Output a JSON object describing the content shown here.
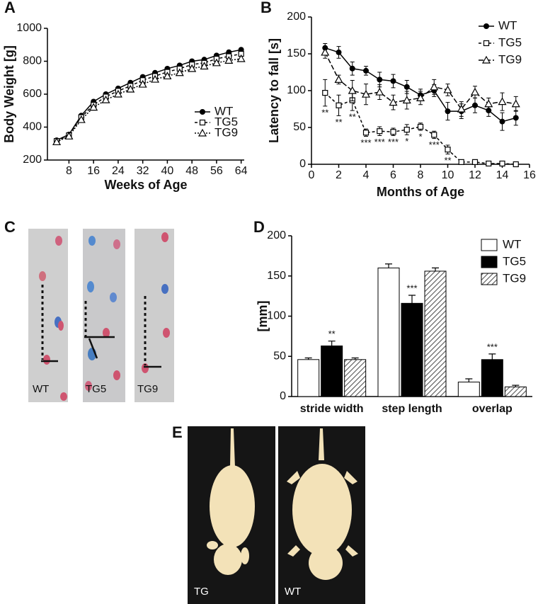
{
  "chart_data": [
    {
      "panel": "A",
      "type": "line",
      "x_label": "Weeks of Age",
      "y_label": "Body Weight [g]",
      "x": [
        4,
        8,
        12,
        16,
        20,
        24,
        28,
        32,
        36,
        40,
        44,
        48,
        52,
        56,
        60,
        64
      ],
      "xlim": [
        1,
        65
      ],
      "xticks": [
        8,
        16,
        24,
        32,
        40,
        48,
        56,
        64
      ],
      "ylim": [
        200,
        1000
      ],
      "yticks": [
        200,
        400,
        600,
        800,
        1000
      ],
      "legend": "lower right",
      "series": [
        {
          "name": "WT",
          "color": "#000000",
          "marker": "circle",
          "line_style": "solid",
          "values": [
            320,
            355,
            470,
            555,
            600,
            635,
            670,
            705,
            730,
            755,
            775,
            800,
            810,
            835,
            855,
            870
          ]
        },
        {
          "name": "TG5",
          "color": "#000000",
          "marker": "square",
          "line_style": "dashed",
          "values": [
            315,
            350,
            460,
            535,
            585,
            620,
            650,
            685,
            710,
            735,
            755,
            780,
            790,
            815,
            830,
            845
          ]
        },
        {
          "name": "TG9",
          "color": "#000000",
          "marker": "triangle",
          "line_style": "dotted",
          "values": [
            310,
            345,
            445,
            520,
            565,
            600,
            630,
            660,
            690,
            710,
            730,
            755,
            770,
            790,
            805,
            815
          ]
        }
      ]
    },
    {
      "panel": "B",
      "type": "line",
      "x_label": "Months of Age",
      "y_label": "Latency to fall [s]",
      "x": [
        1,
        2,
        3,
        4,
        5,
        6,
        7,
        8,
        9,
        10,
        11,
        12,
        13,
        14,
        15
      ],
      "xlim": [
        0,
        16
      ],
      "xticks": [
        0,
        2,
        4,
        6,
        8,
        10,
        12,
        14,
        16
      ],
      "ylim": [
        0,
        200
      ],
      "yticks": [
        0,
        50,
        100,
        150,
        200
      ],
      "legend": "upper right",
      "series": [
        {
          "name": "WT",
          "color": "#000000",
          "marker": "circle",
          "line_style": "solid",
          "values": [
            158,
            152,
            130,
            127,
            115,
            113,
            105,
            94,
            100,
            72,
            72,
            80,
            73,
            58,
            63
          ],
          "errors": [
            6,
            8,
            9,
            6,
            10,
            9,
            9,
            8,
            8,
            12,
            10,
            10,
            8,
            12,
            10
          ]
        },
        {
          "name": "TG5",
          "color": "#000000",
          "marker": "square",
          "line_style": "dashed",
          "values": [
            97,
            80,
            87,
            43,
            45,
            44,
            47,
            51,
            40,
            20,
            3,
            3,
            1,
            1,
            0
          ],
          "errors": [
            18,
            14,
            14,
            5,
            6,
            5,
            7,
            5,
            5,
            6,
            2,
            2,
            1,
            1,
            1
          ],
          "annotations": [
            "**",
            "**",
            "**",
            "***",
            "***",
            "***",
            "*",
            "*",
            "***",
            "**",
            null,
            null,
            null,
            null,
            null
          ]
        },
        {
          "name": "TG9",
          "color": "#000000",
          "marker": "triangle",
          "line_style": "longdash",
          "values": [
            152,
            115,
            100,
            95,
            98,
            84,
            87,
            90,
            105,
            101,
            75,
            98,
            82,
            85,
            82
          ],
          "errors": [
            8,
            6,
            14,
            14,
            10,
            10,
            12,
            9,
            10,
            8,
            10,
            8,
            8,
            12,
            10
          ]
        }
      ]
    },
    {
      "panel": "D",
      "type": "bar",
      "y_label": "[mm]",
      "categories": [
        "stride width",
        "step length",
        "overlap"
      ],
      "ylim": [
        0,
        200
      ],
      "yticks": [
        0,
        50,
        100,
        150,
        200
      ],
      "legend": "upper right",
      "series": [
        {
          "name": "WT",
          "color": "#ffffff",
          "values": [
            46,
            160,
            18
          ],
          "errors": [
            2,
            5,
            4
          ]
        },
        {
          "name": "TG5",
          "color": "#000000",
          "values": [
            63,
            116,
            46
          ],
          "errors": [
            6,
            10,
            7
          ],
          "annotations": [
            "**",
            "***",
            "***"
          ]
        },
        {
          "name": "TG9",
          "color": "#9a9a9a",
          "hatch": true,
          "values": [
            46,
            156,
            12
          ],
          "errors": [
            2,
            4,
            2
          ]
        }
      ]
    }
  ],
  "photo_panels": [
    {
      "panel": "C",
      "captions": [
        "WT",
        "TG5",
        "TG9"
      ]
    },
    {
      "panel": "E",
      "captions": [
        "TG",
        "WT"
      ]
    }
  ]
}
